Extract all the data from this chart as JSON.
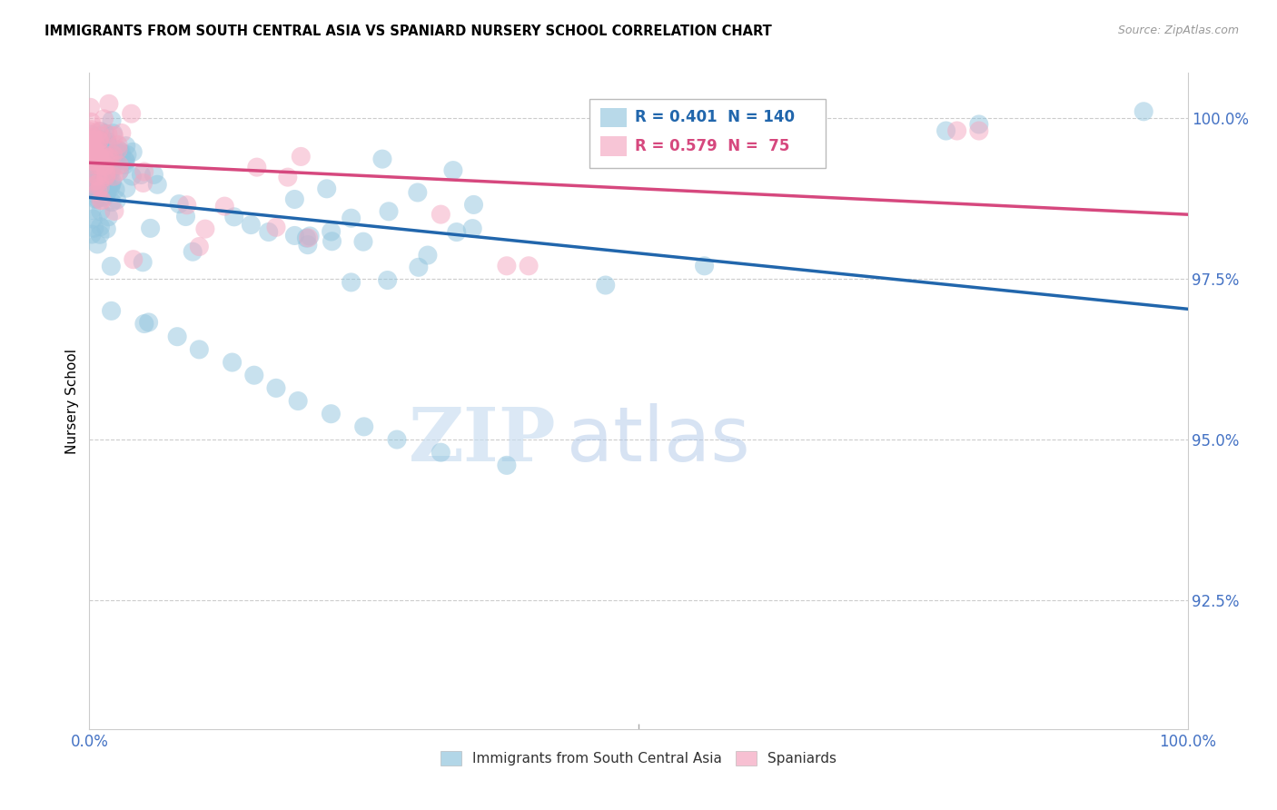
{
  "title": "IMMIGRANTS FROM SOUTH CENTRAL ASIA VS SPANIARD NURSERY SCHOOL CORRELATION CHART",
  "source": "Source: ZipAtlas.com",
  "ylabel": "Nursery School",
  "ytick_labels": [
    "100.0%",
    "97.5%",
    "95.0%",
    "92.5%"
  ],
  "ytick_values": [
    1.0,
    0.975,
    0.95,
    0.925
  ],
  "xtick_labels": [
    "0.0%",
    "100.0%"
  ],
  "xtick_values": [
    0.0,
    1.0
  ],
  "xlim": [
    0.0,
    1.0
  ],
  "ylim": [
    0.905,
    1.007
  ],
  "blue_color": "#92c5de",
  "blue_line_color": "#2166ac",
  "pink_color": "#f4a6c0",
  "pink_line_color": "#d6487e",
  "legend_blue_label": "Immigrants from South Central Asia",
  "legend_pink_label": "Spaniards",
  "R_blue": 0.401,
  "N_blue": 140,
  "R_pink": 0.579,
  "N_pink": 75,
  "watermark_zip": "ZIP",
  "watermark_atlas": "atlas"
}
